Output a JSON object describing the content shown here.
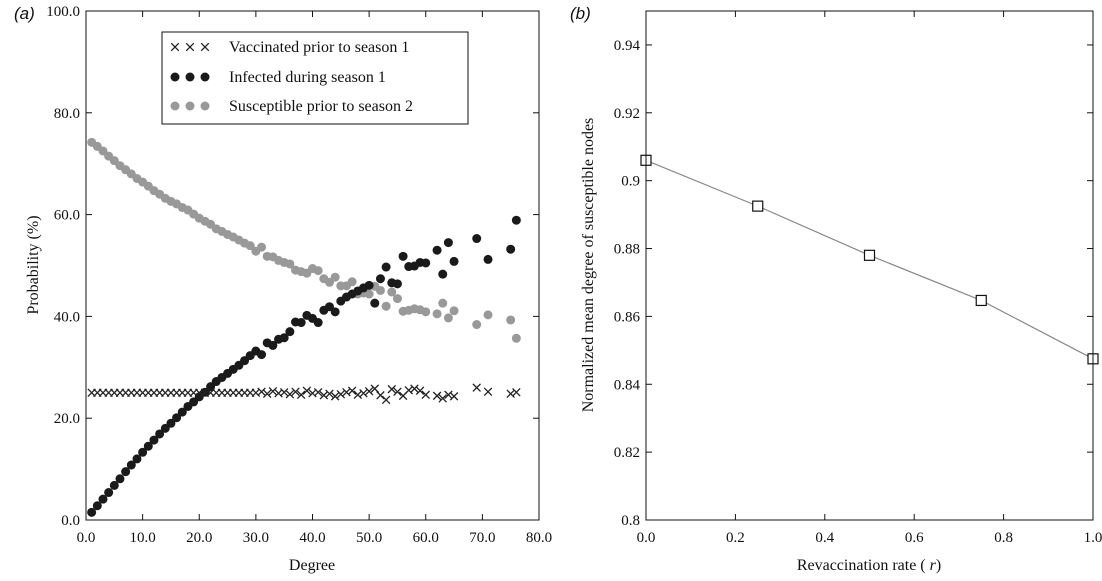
{
  "chart_data": [
    {
      "type": "scatter",
      "panel_label": "(a)",
      "xlabel": "Degree",
      "ylabel": "Probability (%)",
      "xlim": [
        0,
        80
      ],
      "ylim": [
        0,
        100
      ],
      "xticks": [
        0,
        10,
        20,
        30,
        40,
        50,
        60,
        70,
        80
      ],
      "xtick_labels": [
        "0.0",
        "10.0",
        "20.0",
        "30.0",
        "40.0",
        "50.0",
        "60.0",
        "70.0",
        "80.0"
      ],
      "yticks": [
        0,
        20,
        40,
        60,
        80,
        100
      ],
      "ytick_labels": [
        "0.0",
        "20.0",
        "40.0",
        "60.0",
        "80.0",
        "100.0"
      ],
      "legend_position": "top-center",
      "series": [
        {
          "name": "Vaccinated prior to season 1",
          "marker": "x",
          "color": "#222222",
          "x": [
            1,
            2,
            3,
            4,
            5,
            6,
            7,
            8,
            9,
            10,
            11,
            12,
            13,
            14,
            15,
            16,
            17,
            18,
            19,
            20,
            21,
            22,
            23,
            24,
            25,
            26,
            27,
            28,
            29,
            30,
            31,
            32,
            33,
            34,
            35,
            36,
            37,
            38,
            39,
            40,
            41,
            42,
            43,
            44,
            45,
            46,
            47,
            48,
            49,
            50,
            51,
            52,
            53,
            54,
            55,
            56,
            57,
            58,
            59,
            60,
            62,
            63,
            64,
            65,
            69,
            71,
            75,
            76
          ],
          "y": [
            25,
            25,
            25,
            25,
            25,
            25,
            25,
            25,
            25,
            25,
            25,
            25,
            25,
            25,
            25,
            25,
            25,
            25,
            25,
            25,
            25,
            25,
            25,
            25,
            25,
            25,
            25,
            25,
            25,
            25,
            25.2,
            24.8,
            25.3,
            24.9,
            25.1,
            24.7,
            25.2,
            24.6,
            25.4,
            24.9,
            25.1,
            24.5,
            24.8,
            24.3,
            24.7,
            25.1,
            25.4,
            24.6,
            24.9,
            25.3,
            25.8,
            24.5,
            23.6,
            25.7,
            25.2,
            24.4,
            25.5,
            25.8,
            25.4,
            24.6,
            24.4,
            23.9,
            24.6,
            24.3,
            26.0,
            25.2,
            24.8,
            25.1
          ]
        },
        {
          "name": "Infected during season 1",
          "marker": "filled-circle",
          "color": "#1a1a1a",
          "x": [
            1,
            2,
            3,
            4,
            5,
            6,
            7,
            8,
            9,
            10,
            11,
            12,
            13,
            14,
            15,
            16,
            17,
            18,
            19,
            20,
            21,
            22,
            23,
            24,
            25,
            26,
            27,
            28,
            29,
            30,
            31,
            32,
            33,
            34,
            35,
            36,
            37,
            38,
            39,
            40,
            41,
            42,
            43,
            44,
            45,
            46,
            47,
            48,
            49,
            50,
            51,
            52,
            53,
            54,
            55,
            56,
            57,
            58,
            59,
            60,
            62,
            63,
            64,
            65,
            69,
            71,
            75,
            76
          ],
          "y": [
            1.5,
            2.8,
            4.1,
            5.4,
            6.8,
            8.1,
            9.5,
            10.8,
            12.0,
            13.3,
            14.5,
            15.7,
            16.9,
            18.0,
            19.0,
            20.1,
            21.2,
            22.3,
            23.2,
            24.2,
            25.1,
            26.2,
            27.2,
            28.0,
            28.8,
            29.6,
            30.4,
            31.3,
            32.3,
            33.2,
            32.5,
            34.8,
            34.3,
            35.5,
            35.8,
            37.0,
            38.9,
            38.8,
            40.2,
            39.6,
            38.8,
            41.2,
            41.9,
            40.9,
            43.0,
            43.8,
            44.4,
            45.0,
            45.6,
            46.1,
            42.6,
            47.4,
            49.7,
            46.6,
            46.4,
            51.8,
            49.8,
            49.9,
            50.6,
            50.5,
            53.0,
            48.3,
            54.5,
            50.8,
            55.3,
            51.2,
            53.2,
            58.9
          ]
        },
        {
          "name": "Susceptible prior to season 2",
          "marker": "filled-circle",
          "color": "#999999",
          "x": [
            1,
            2,
            3,
            4,
            5,
            6,
            7,
            8,
            9,
            10,
            11,
            12,
            13,
            14,
            15,
            16,
            17,
            18,
            19,
            20,
            21,
            22,
            23,
            24,
            25,
            26,
            27,
            28,
            29,
            30,
            31,
            32,
            33,
            34,
            35,
            36,
            37,
            38,
            39,
            40,
            41,
            42,
            43,
            44,
            45,
            46,
            47,
            48,
            49,
            50,
            51,
            52,
            53,
            54,
            55,
            56,
            57,
            58,
            59,
            60,
            62,
            63,
            64,
            65,
            69,
            71,
            75,
            76
          ],
          "y": [
            74.2,
            73.4,
            72.5,
            71.5,
            70.6,
            69.6,
            68.8,
            68.0,
            67.1,
            66.4,
            65.6,
            64.7,
            64.0,
            63.2,
            62.6,
            62.1,
            61.4,
            60.9,
            60.1,
            59.3,
            58.7,
            58.1,
            57.2,
            56.7,
            56.1,
            55.6,
            55.0,
            54.4,
            53.9,
            52.8,
            53.6,
            51.8,
            51.7,
            51.0,
            50.6,
            50.3,
            49.1,
            48.8,
            48.5,
            49.4,
            49.0,
            47.4,
            46.7,
            47.7,
            46.0,
            46.0,
            46.8,
            44.4,
            44.6,
            44.4,
            45.9,
            45.1,
            42.0,
            44.8,
            43.5,
            41.0,
            41.2,
            41.5,
            41.3,
            40.9,
            40.5,
            42.6,
            39.7,
            41.1,
            38.4,
            40.3,
            39.3,
            35.7
          ]
        }
      ]
    },
    {
      "type": "line",
      "panel_label": "(b)",
      "xlabel": "Revaccination rate (r)",
      "ylabel": "Normalized mean degree of susceptible nodes",
      "xlim": [
        0,
        1
      ],
      "ylim": [
        0.8,
        0.95
      ],
      "xticks": [
        0,
        0.2,
        0.4,
        0.6,
        0.8,
        1.0
      ],
      "xtick_labels": [
        "0.0",
        "0.2",
        "0.4",
        "0.6",
        "0.8",
        "1.0"
      ],
      "yticks": [
        0.8,
        0.82,
        0.84,
        0.86,
        0.88,
        0.9,
        0.92,
        0.94
      ],
      "ytick_labels": [
        "0.8",
        "0.82",
        "0.84",
        "0.86",
        "0.88",
        "0.9",
        "0.92",
        "0.94"
      ],
      "series": [
        {
          "marker": "open-square",
          "color": "#888888",
          "x": [
            0,
            0.25,
            0.5,
            0.75,
            1.0
          ],
          "y": [
            0.906,
            0.8925,
            0.878,
            0.8647,
            0.8475
          ]
        }
      ]
    }
  ]
}
